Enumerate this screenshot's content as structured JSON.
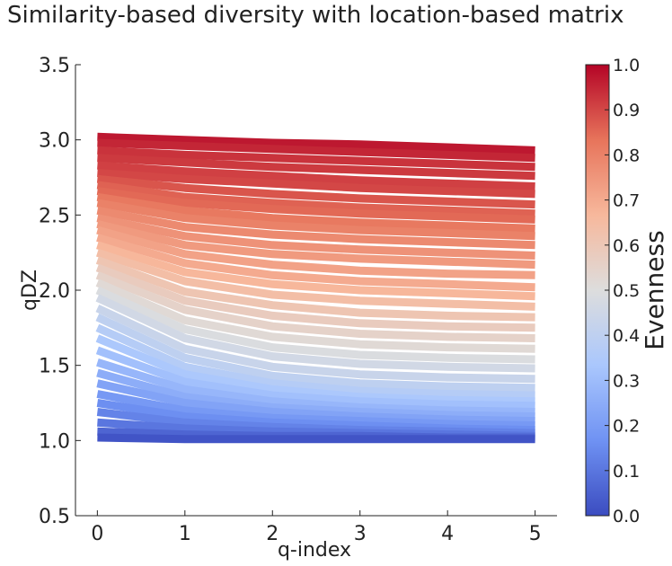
{
  "chart_data": {
    "type": "line",
    "title": "Similarity-based diversity with location-based matrix",
    "xlabel": "q-index",
    "ylabel": "qDZ",
    "xlim": [
      -0.25,
      5.25
    ],
    "ylim": [
      0.5,
      3.5
    ],
    "x_ticks": [
      "0",
      "1",
      "2",
      "3",
      "4",
      "5"
    ],
    "y_ticks": [
      "0.5",
      "1.0",
      "1.5",
      "2.0",
      "2.5",
      "3.0",
      "3.5"
    ],
    "grid": false,
    "colorbar": {
      "label": "Evenness",
      "range": [
        0.0,
        1.0
      ],
      "ticks": [
        "0.0",
        "0.1",
        "0.2",
        "0.3",
        "0.4",
        "0.5",
        "0.6",
        "0.7",
        "0.8",
        "0.9",
        "1.0"
      ],
      "colormap": "coolwarm",
      "colors": [
        "#3b4cc0",
        "#6f92f3",
        "#aac7fd",
        "#dddddd",
        "#f7b89c",
        "#e7745b",
        "#b40426"
      ]
    },
    "x": [
      0,
      1,
      2,
      3,
      4,
      5
    ],
    "series": [
      {
        "evenness": 0.97,
        "values": [
          3.02,
          3.0,
          2.98,
          2.97,
          2.95,
          2.93
        ]
      },
      {
        "evenness": 0.95,
        "values": [
          2.98,
          2.96,
          2.94,
          2.92,
          2.9,
          2.88
        ]
      },
      {
        "evenness": 0.93,
        "values": [
          2.93,
          2.9,
          2.88,
          2.86,
          2.84,
          2.82
        ]
      },
      {
        "evenness": 0.92,
        "values": [
          2.88,
          2.85,
          2.82,
          2.8,
          2.78,
          2.76
        ]
      },
      {
        "evenness": 0.91,
        "values": [
          2.83,
          2.79,
          2.76,
          2.73,
          2.71,
          2.69
        ]
      },
      {
        "evenness": 0.9,
        "values": [
          2.78,
          2.74,
          2.71,
          2.68,
          2.66,
          2.64
        ]
      },
      {
        "evenness": 0.88,
        "values": [
          2.74,
          2.68,
          2.64,
          2.61,
          2.59,
          2.57
        ]
      },
      {
        "evenness": 0.86,
        "values": [
          2.7,
          2.62,
          2.58,
          2.55,
          2.53,
          2.51
        ]
      },
      {
        "evenness": 0.85,
        "values": [
          2.66,
          2.58,
          2.54,
          2.51,
          2.49,
          2.47
        ]
      },
      {
        "evenness": 0.82,
        "values": [
          2.62,
          2.53,
          2.48,
          2.45,
          2.43,
          2.41
        ]
      },
      {
        "evenness": 0.8,
        "values": [
          2.58,
          2.48,
          2.43,
          2.4,
          2.38,
          2.36
        ]
      },
      {
        "evenness": 0.78,
        "values": [
          2.53,
          2.42,
          2.37,
          2.34,
          2.32,
          2.3
        ]
      },
      {
        "evenness": 0.76,
        "values": [
          2.48,
          2.36,
          2.3,
          2.27,
          2.25,
          2.23
        ]
      },
      {
        "evenness": 0.74,
        "values": [
          2.44,
          2.3,
          2.24,
          2.21,
          2.19,
          2.17
        ]
      },
      {
        "evenness": 0.72,
        "values": [
          2.4,
          2.24,
          2.17,
          2.13,
          2.11,
          2.1
        ]
      },
      {
        "evenness": 0.7,
        "values": [
          2.35,
          2.18,
          2.1,
          2.06,
          2.04,
          2.02
        ]
      },
      {
        "evenness": 0.67,
        "values": [
          2.3,
          2.12,
          2.04,
          2.0,
          1.98,
          1.96
        ]
      },
      {
        "evenness": 0.64,
        "values": [
          2.25,
          2.06,
          1.97,
          1.93,
          1.91,
          1.89
        ]
      },
      {
        "evenness": 0.61,
        "values": [
          2.2,
          1.99,
          1.9,
          1.85,
          1.83,
          1.82
        ]
      },
      {
        "evenness": 0.58,
        "values": [
          2.15,
          1.93,
          1.83,
          1.78,
          1.76,
          1.75
        ]
      },
      {
        "evenness": 0.55,
        "values": [
          2.1,
          1.87,
          1.76,
          1.71,
          1.69,
          1.68
        ]
      },
      {
        "evenness": 0.52,
        "values": [
          2.05,
          1.8,
          1.69,
          1.64,
          1.62,
          1.61
        ]
      },
      {
        "evenness": 0.49,
        "values": [
          2.0,
          1.74,
          1.62,
          1.57,
          1.55,
          1.54
        ]
      },
      {
        "evenness": 0.46,
        "values": [
          1.95,
          1.68,
          1.56,
          1.51,
          1.49,
          1.48
        ]
      },
      {
        "evenness": 0.43,
        "values": [
          1.88,
          1.61,
          1.49,
          1.44,
          1.42,
          1.41
        ]
      },
      {
        "evenness": 0.4,
        "values": [
          1.82,
          1.55,
          1.43,
          1.38,
          1.36,
          1.35
        ]
      },
      {
        "evenness": 0.37,
        "values": [
          1.75,
          1.49,
          1.38,
          1.33,
          1.31,
          1.3
        ]
      },
      {
        "evenness": 0.34,
        "values": [
          1.68,
          1.44,
          1.34,
          1.29,
          1.27,
          1.26
        ]
      },
      {
        "evenness": 0.31,
        "values": [
          1.6,
          1.39,
          1.3,
          1.26,
          1.24,
          1.23
        ]
      },
      {
        "evenness": 0.28,
        "values": [
          1.52,
          1.34,
          1.26,
          1.22,
          1.2,
          1.19
        ]
      },
      {
        "evenness": 0.25,
        "values": [
          1.45,
          1.29,
          1.22,
          1.19,
          1.17,
          1.16
        ]
      },
      {
        "evenness": 0.22,
        "values": [
          1.38,
          1.25,
          1.19,
          1.16,
          1.14,
          1.13
        ]
      },
      {
        "evenness": 0.19,
        "values": [
          1.31,
          1.2,
          1.15,
          1.13,
          1.11,
          1.1
        ]
      },
      {
        "evenness": 0.16,
        "values": [
          1.25,
          1.16,
          1.12,
          1.1,
          1.08,
          1.07
        ]
      },
      {
        "evenness": 0.13,
        "values": [
          1.19,
          1.12,
          1.09,
          1.07,
          1.06,
          1.05
        ]
      },
      {
        "evenness": 0.1,
        "values": [
          1.12,
          1.08,
          1.06,
          1.05,
          1.04,
          1.03
        ]
      },
      {
        "evenness": 0.06,
        "values": [
          1.06,
          1.04,
          1.03,
          1.03,
          1.02,
          1.02
        ]
      },
      {
        "evenness": 0.02,
        "values": [
          1.02,
          1.01,
          1.01,
          1.01,
          1.01,
          1.01
        ]
      }
    ]
  }
}
